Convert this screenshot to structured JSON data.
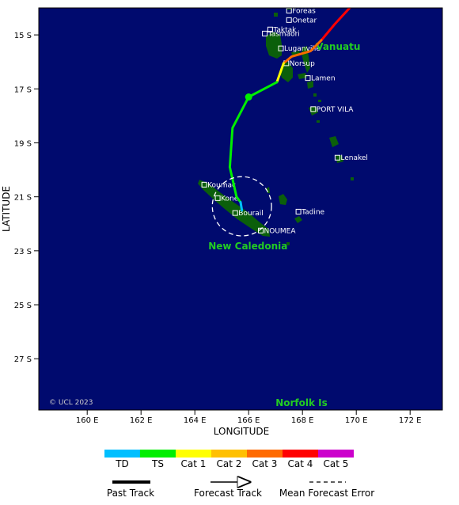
{
  "map": {
    "lon_range": [
      158.2,
      173.2
    ],
    "lat_range": [
      -14.0,
      -28.9
    ],
    "background": "#000a6e",
    "land": "#0b5f0b",
    "axis": {
      "xlabel": "LONGITUDE",
      "ylabel": "LATITUDE",
      "x_ticks": [
        {
          "lon": 160,
          "label": "160 E"
        },
        {
          "lon": 162,
          "label": "162 E"
        },
        {
          "lon": 164,
          "label": "164 E"
        },
        {
          "lon": 166,
          "label": "166 E"
        },
        {
          "lon": 168,
          "label": "168 E"
        },
        {
          "lon": 170,
          "label": "170 E"
        },
        {
          "lon": 172,
          "label": "172 E"
        }
      ],
      "y_ticks": [
        {
          "lat": -15,
          "label": "15 S"
        },
        {
          "lat": -17,
          "label": "17 S"
        },
        {
          "lat": -19,
          "label": "19 S"
        },
        {
          "lat": -21,
          "label": "21 S"
        },
        {
          "lat": -23,
          "label": "23 S"
        },
        {
          "lat": -25,
          "label": "25 S"
        },
        {
          "lat": -27,
          "label": "27 S"
        }
      ]
    },
    "places": [
      {
        "name": "Foreas",
        "lon": 167.5,
        "lat": -14.1
      },
      {
        "name": "Onetar",
        "lon": 167.5,
        "lat": -14.45
      },
      {
        "name": "Taktak",
        "lon": 166.8,
        "lat": -14.8
      },
      {
        "name": "Tasmaori",
        "lon": 166.6,
        "lat": -14.95
      },
      {
        "name": "Luganville",
        "lon": 167.2,
        "lat": -15.5
      },
      {
        "name": "Norsup",
        "lon": 167.4,
        "lat": -16.05
      },
      {
        "name": "Lamen",
        "lon": 168.2,
        "lat": -16.6
      },
      {
        "name": "PORT VILA",
        "lon": 168.4,
        "lat": -17.75
      },
      {
        "name": "Lenakel",
        "lon": 169.3,
        "lat": -19.55
      },
      {
        "name": "Koumac",
        "lon": 164.35,
        "lat": -20.55
      },
      {
        "name": "Kone",
        "lon": 164.85,
        "lat": -21.05
      },
      {
        "name": "Bourail",
        "lon": 165.5,
        "lat": -21.6
      },
      {
        "name": "Tadine",
        "lon": 167.85,
        "lat": -21.55
      },
      {
        "name": "NOUMEA",
        "lon": 166.45,
        "lat": -22.25
      }
    ],
    "regions": [
      {
        "name": "Vanuatu",
        "lon": 168.5,
        "lat": -15.55
      },
      {
        "name": "New Caledonia",
        "lon": 164.5,
        "lat": -22.95
      },
      {
        "name": "Norfolk Is",
        "lon": 167.0,
        "lat": -28.75
      }
    ],
    "copyright": "© UCL 2023"
  },
  "track": {
    "segments": [
      {
        "category": "Cat 4",
        "points": [
          [
            169.8,
            -13.95
          ],
          [
            169.2,
            -14.6
          ],
          [
            168.7,
            -15.2
          ]
        ]
      },
      {
        "category": "Cat 3",
        "points": [
          [
            168.7,
            -15.2
          ],
          [
            168.3,
            -15.6
          ],
          [
            167.6,
            -15.8
          ],
          [
            167.3,
            -16.05
          ]
        ]
      },
      {
        "category": "Cat 1",
        "points": [
          [
            167.3,
            -16.05
          ],
          [
            167.05,
            -16.75
          ]
        ]
      },
      {
        "category": "TS",
        "points": [
          [
            167.05,
            -16.75
          ],
          [
            166.0,
            -17.3
          ],
          [
            165.4,
            -18.45
          ],
          [
            165.3,
            -19.9
          ],
          [
            165.55,
            -21.0
          ],
          [
            165.7,
            -21.2
          ]
        ]
      },
      {
        "category": "TD",
        "points": [
          [
            165.7,
            -21.2
          ],
          [
            165.75,
            -21.5
          ]
        ]
      }
    ],
    "forecast_point": [
      166.0,
      -17.3
    ],
    "mean_error_circle": {
      "lon": 165.75,
      "lat": -21.35,
      "radius_deg": 1.1
    }
  },
  "legend": {
    "categories": [
      {
        "label": "TD",
        "color": "#00bfff"
      },
      {
        "label": "TS",
        "color": "#00ee00"
      },
      {
        "label": "Cat 1",
        "color": "#ffff00"
      },
      {
        "label": "Cat 2",
        "color": "#ffc000"
      },
      {
        "label": "Cat 3",
        "color": "#ff6a00"
      },
      {
        "label": "Cat 4",
        "color": "#ff0000"
      },
      {
        "label": "Cat 5",
        "color": "#cc00cc"
      }
    ],
    "lines": [
      {
        "label": "Past Track"
      },
      {
        "label": "Forecast Track"
      },
      {
        "label": "Mean Forecast Error"
      }
    ]
  }
}
